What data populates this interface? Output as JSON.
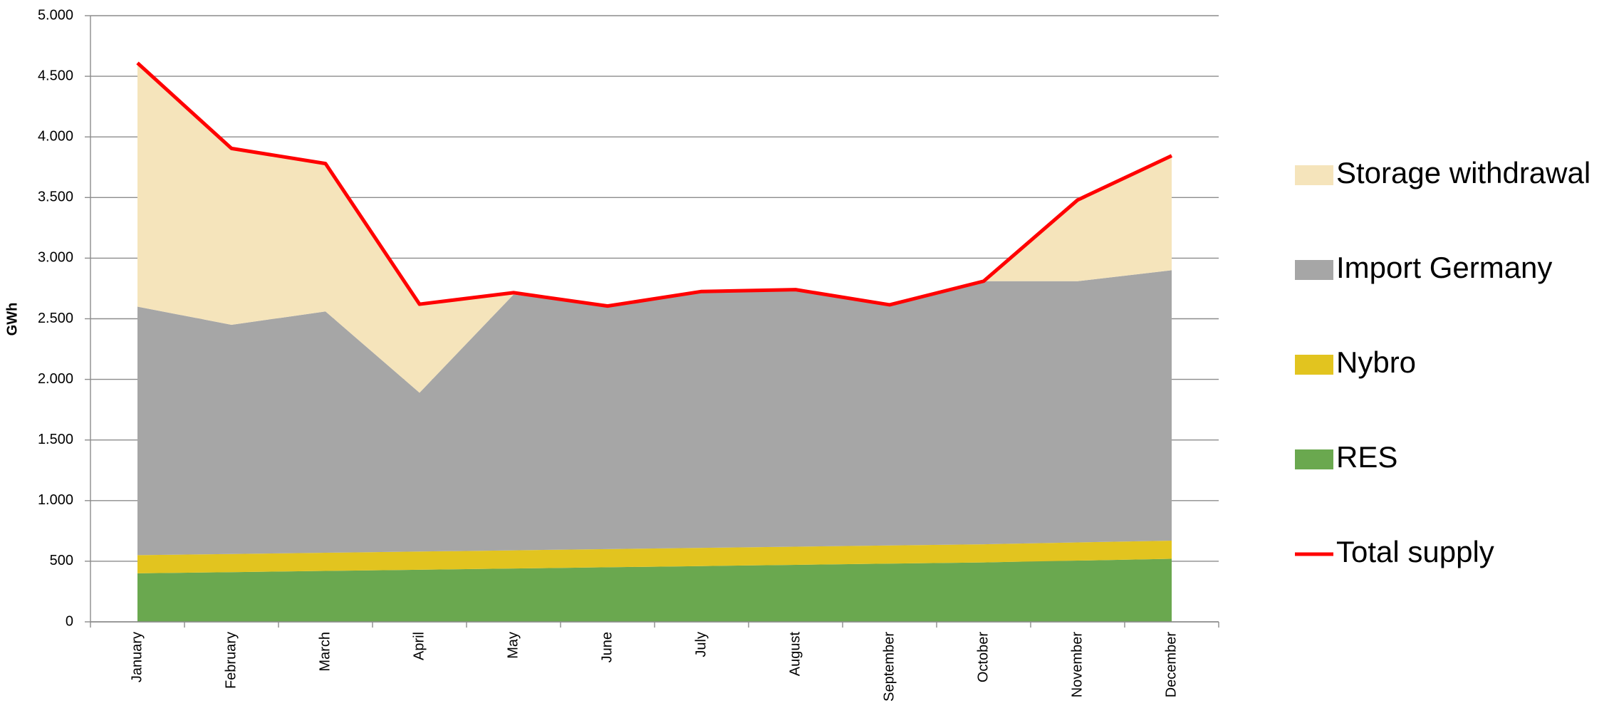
{
  "chart_data": {
    "type": "area",
    "ylabel": "GWh",
    "categories": [
      "January",
      "February",
      "March",
      "April",
      "May",
      "June",
      "July",
      "August",
      "September",
      "October",
      "November",
      "December"
    ],
    "series": [
      {
        "name": "RES",
        "color": "#6aa84f",
        "values": [
          400,
          410,
          420,
          430,
          440,
          450,
          460,
          470,
          480,
          490,
          505,
          520
        ]
      },
      {
        "name": "Nybro",
        "color": "#e2c41f",
        "values": [
          150,
          150,
          150,
          150,
          150,
          150,
          150,
          150,
          150,
          150,
          150,
          150
        ]
      },
      {
        "name": "Import Germany",
        "color": "#a6a6a6",
        "values": [
          2050,
          1890,
          1990,
          1310,
          2110,
          2005,
          2115,
          2120,
          1985,
          2170,
          2155,
          2230
        ]
      },
      {
        "name": "Storage withdrawal",
        "color": "#f5e4bb",
        "values": [
          2010,
          1455,
          1220,
          730,
          15,
          0,
          0,
          0,
          0,
          0,
          670,
          945
        ]
      },
      {
        "name": "Total supply",
        "color": "#ff0000",
        "type": "line",
        "values": [
          4610,
          3905,
          3780,
          2620,
          2715,
          2605,
          2725,
          2740,
          2615,
          2810,
          3480,
          3845
        ]
      }
    ],
    "ylim": [
      0,
      5000
    ],
    "yticks": [
      0,
      500,
      {
        "value": 1000,
        "label": "1.000"
      },
      {
        "value": 1500,
        "label": "1.500"
      },
      {
        "value": 2000,
        "label": "2.000"
      },
      {
        "value": 2500,
        "label": "2.500"
      },
      {
        "value": 3000,
        "label": "3.000"
      },
      {
        "value": 3500,
        "label": "3.500"
      },
      {
        "value": 4000,
        "label": "4.000"
      },
      {
        "value": 4500,
        "label": "4.500"
      },
      {
        "value": 5000,
        "label": "5.000"
      }
    ],
    "grid": true,
    "legend": "right"
  }
}
